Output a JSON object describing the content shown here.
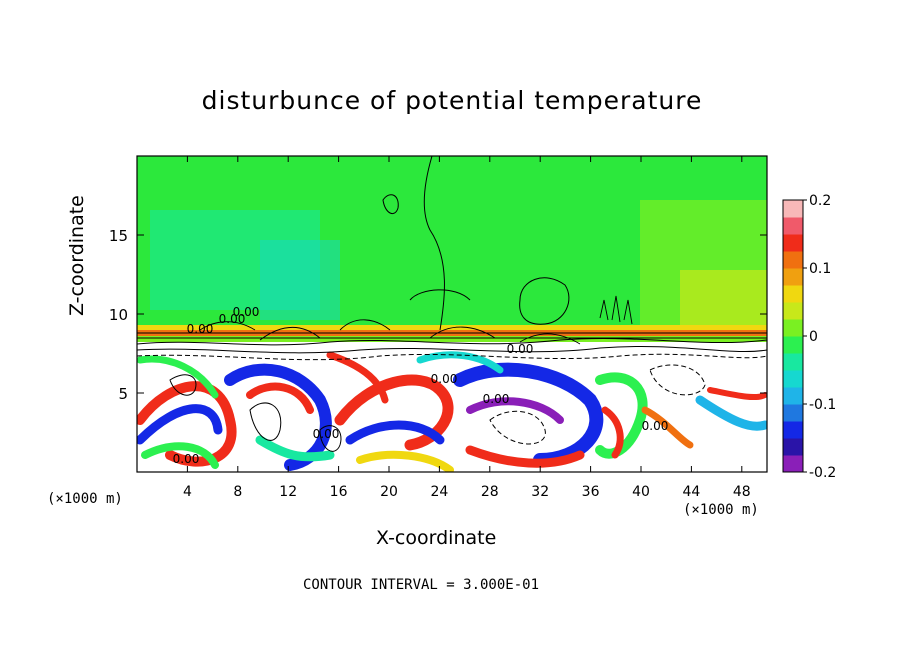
{
  "chart_data": {
    "type": "heatmap",
    "title": "disturbunce of potential temperature",
    "xlabel": "X-coordinate",
    "ylabel": "Z-coordinate",
    "x_unit_label": "(×1000 m)",
    "x_unit_label_right": "(×1000 m)",
    "x_ticks": [
      "4",
      "8",
      "12",
      "16",
      "20",
      "24",
      "28",
      "32",
      "36",
      "40",
      "44",
      "48"
    ],
    "x_tick_values": [
      4,
      8,
      12,
      16,
      20,
      24,
      28,
      32,
      36,
      40,
      44,
      48
    ],
    "y_ticks": [
      "5",
      "10",
      "15"
    ],
    "y_tick_values": [
      5,
      10,
      15
    ],
    "xlim": [
      0,
      50
    ],
    "ylim": [
      0,
      20
    ],
    "colorbar": {
      "ticks": [
        "0.2",
        "0.1",
        "0",
        "-0.1",
        "-0.2"
      ],
      "tick_values": [
        0.2,
        0.1,
        0,
        -0.1,
        -0.2
      ],
      "range": [
        -0.2,
        0.2
      ],
      "colors": [
        "#8a1fb8",
        "#2a14a8",
        "#1428e6",
        "#1f78e0",
        "#1fb4e8",
        "#16d8d0",
        "#18e8a0",
        "#2cf050",
        "#7af022",
        "#c8e81a",
        "#f0d810",
        "#f0a010",
        "#f07010",
        "#f02c1a",
        "#f05a6a",
        "#f8b8b8"
      ]
    },
    "contour_labels": [
      "0.00",
      "0.00",
      "0.00",
      "0.00",
      "0.00",
      "0.00",
      "0.00",
      "0.00",
      "0.00"
    ],
    "footer": "CONTOUR INTERVAL = 3.000E-01"
  }
}
